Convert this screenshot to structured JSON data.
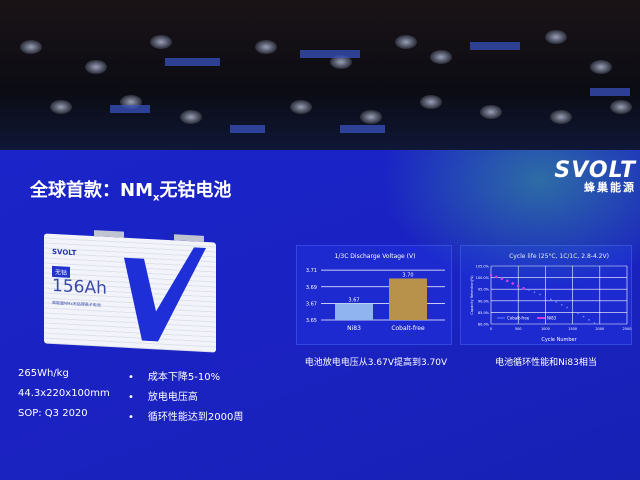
{
  "logo": {
    "brand": "SVOLT",
    "sub": "蜂巢能源"
  },
  "title": {
    "prefix": "全球首款：NM",
    "subscript": "x",
    "suffix": "无钴电池"
  },
  "battery": {
    "brand": "SVOLT",
    "tag": "无钴",
    "capacity": "156Ah",
    "desc": "高能量NMx无钴锂离子电池"
  },
  "specs": [
    "265Wh/kg",
    "44.3x220x100mm",
    "SOP: Q3 2020"
  ],
  "bullets": [
    "成本下降5-10%",
    "放电电压高",
    "循环性能达到2000周"
  ],
  "captions": [
    "电池放电电压从3.67V提高到3.70V",
    "电池循环性能和Ni83相当"
  ],
  "colors": {
    "slide_bg": "#1a24c8",
    "bar_ni83": "#8fb4f0",
    "bar_cobalt_free": "#b8924a",
    "series_cobalt_free": "#6a7cff",
    "series_ni83": "#d040e0"
  },
  "chart_data": [
    {
      "type": "bar",
      "title": "1/3C Discharge Voltage (V)",
      "categories": [
        "Ni83",
        "Cobalt-free"
      ],
      "values": [
        3.67,
        3.7
      ],
      "data_labels": [
        "3.67",
        "3.70"
      ],
      "ylim": [
        3.65,
        3.715
      ],
      "yticks": [
        "3.65",
        "3.67",
        "3.69",
        "3.71"
      ],
      "grid": true
    },
    {
      "type": "scatter",
      "title": "Cycle life (25°C, 1C/1C, 2.8-4.2V)",
      "xlabel": "Cycle Number",
      "ylabel": "Capacity Retention(%)",
      "xlim": [
        0,
        2500
      ],
      "ylim": [
        80,
        105
      ],
      "xticks": [
        "0",
        "500",
        "1000",
        "1500",
        "2000",
        "2500"
      ],
      "yticks": [
        "80.0%",
        "85.0%",
        "90.0%",
        "95.0%",
        "100.0%",
        "105.0%"
      ],
      "grid": true,
      "legend": "bottom-left",
      "series": [
        {
          "name": "Cobalt-free",
          "x": [
            0,
            100,
            200,
            300,
            400,
            500,
            600,
            700,
            800,
            900,
            1000,
            1100,
            1200,
            1300,
            1400,
            1500,
            1600,
            1700,
            1800,
            1900
          ],
          "y": [
            100.8,
            100.2,
            99.4,
            98.5,
            97.6,
            96.6,
            95.6,
            94.7,
            93.7,
            92.7,
            91.6,
            90.6,
            89.5,
            88.3,
            87.1,
            85.9,
            84.6,
            83.2,
            81.8,
            80.4
          ]
        },
        {
          "name": "Ni83",
          "x": [
            0,
            100,
            200,
            300,
            400,
            500,
            600
          ],
          "y": [
            101,
            100.3,
            99.5,
            98.6,
            97.5,
            96.4,
            95.3
          ]
        }
      ]
    }
  ]
}
